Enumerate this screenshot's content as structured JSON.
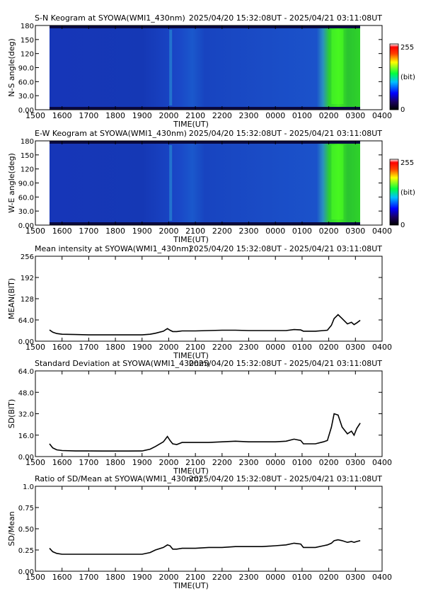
{
  "chart_data": [
    {
      "type": "heatmap",
      "title": "S-N Keogram at SYOWA(WMI1_430nm)",
      "time_range": "2025/04/20 15:32:08UT - 2025/04/21 03:11:08UT",
      "xlabel": "TIME(UT)",
      "ylabel": "N-S angle(deg)",
      "x_ticks": [
        "1500",
        "1600",
        "1700",
        "1800",
        "1900",
        "2000",
        "2100",
        "2200",
        "2300",
        "0000",
        "0100",
        "0200",
        "0300",
        "0400"
      ],
      "y_ticks": [
        "0.00",
        "30.0",
        "60.0",
        "90.0",
        "120",
        "150",
        "180"
      ],
      "ylim": [
        0,
        180
      ],
      "colorbar": {
        "max_label": "255",
        "unit_label": "(bit)",
        "min_label": "0"
      }
    },
    {
      "type": "heatmap",
      "title": "E-W Keogram at SYOWA(WMI1_430nm)",
      "time_range": "2025/04/20 15:32:08UT - 2025/04/21 03:11:08UT",
      "xlabel": "TIME(UT)",
      "ylabel": "W-E angle(deg)",
      "x_ticks": [
        "1500",
        "1600",
        "1700",
        "1800",
        "1900",
        "2000",
        "2100",
        "2200",
        "2300",
        "0000",
        "0100",
        "0200",
        "0300",
        "0400"
      ],
      "y_ticks": [
        "0.00",
        "30.0",
        "60.0",
        "90.0",
        "120",
        "150",
        "180"
      ],
      "ylim": [
        0,
        180
      ],
      "colorbar": {
        "max_label": "255",
        "unit_label": "(bit)",
        "min_label": "0"
      }
    },
    {
      "type": "line",
      "title": "Mean intensity at SYOWA(WMI1_430nm)",
      "time_range": "2025/04/20 15:32:08UT - 2025/04/21 03:11:08UT",
      "xlabel": "TIME(UT)",
      "ylabel": "MEAN(BIT)",
      "x_ticks": [
        "1500",
        "1600",
        "1700",
        "1800",
        "1900",
        "2000",
        "2100",
        "2200",
        "2300",
        "0000",
        "0100",
        "0200",
        "0300",
        "0400"
      ],
      "y_ticks": [
        "0.00",
        "64.0",
        "128",
        "192",
        "256"
      ],
      "ylim": [
        0,
        256
      ],
      "x_hours": [
        15.53,
        15.65,
        15.8,
        16.0,
        16.5,
        17.0,
        17.5,
        18.0,
        18.5,
        19.0,
        19.3,
        19.5,
        19.8,
        19.95,
        20.05,
        20.15,
        20.3,
        20.5,
        21.0,
        21.5,
        22.0,
        22.5,
        23.0,
        23.5,
        24.0,
        24.4,
        24.7,
        24.95,
        25.05,
        25.5,
        25.8,
        25.95,
        26.1,
        26.2,
        26.35,
        26.5,
        26.7,
        26.85,
        26.95,
        27.05,
        27.18
      ],
      "values": [
        34,
        27,
        23,
        21,
        20,
        19,
        19,
        19,
        19,
        19,
        21,
        24,
        30,
        38,
        33,
        29,
        29,
        31,
        31,
        32,
        33,
        33,
        32,
        32,
        32,
        32,
        35,
        34,
        30,
        30,
        32,
        33,
        48,
        68,
        80,
        68,
        52,
        57,
        50,
        55,
        63
      ]
    },
    {
      "type": "line",
      "title": "Standard Deviation at SYOWA(WMI1_430nm)",
      "time_range": "2025/04/20 15:32:08UT - 2025/04/21 03:11:08UT",
      "xlabel": "TIME(UT)",
      "ylabel": "SD(BIT)",
      "x_ticks": [
        "1500",
        "1600",
        "1700",
        "1800",
        "1900",
        "2000",
        "2100",
        "2200",
        "2300",
        "0000",
        "0100",
        "0200",
        "0300",
        "0400"
      ],
      "y_ticks": [
        "0.00",
        "16.0",
        "32.0",
        "48.0",
        "64.0"
      ],
      "ylim": [
        0,
        64
      ],
      "x_hours": [
        15.53,
        15.65,
        15.8,
        16.0,
        16.5,
        17.0,
        17.5,
        18.0,
        18.5,
        19.0,
        19.3,
        19.5,
        19.8,
        19.95,
        20.05,
        20.15,
        20.3,
        20.5,
        21.0,
        21.5,
        22.0,
        22.5,
        23.0,
        23.5,
        24.0,
        24.4,
        24.7,
        24.95,
        25.05,
        25.5,
        25.8,
        25.95,
        26.1,
        26.2,
        26.35,
        26.5,
        26.7,
        26.85,
        26.95,
        27.05,
        27.18
      ],
      "values": [
        9.5,
        6.5,
        5.0,
        4.5,
        4.2,
        4.2,
        4.1,
        4.1,
        4.1,
        4.2,
        5.5,
        7.5,
        11,
        15,
        12,
        9.5,
        9.0,
        10.5,
        10.5,
        10.5,
        11,
        11.5,
        11,
        11,
        11,
        11.5,
        13,
        12,
        9.5,
        9.5,
        11,
        12,
        22,
        32,
        31,
        22,
        17,
        19,
        16,
        21,
        25
      ]
    },
    {
      "type": "line",
      "title": "Ratio of SD/Mean at SYOWA(WMI1_430nm)",
      "time_range": "2025/04/20 15:32:08UT - 2025/04/21 03:11:08UT",
      "xlabel": "TIME(UT)",
      "ylabel": "SD/Mean",
      "x_ticks": [
        "1500",
        "1600",
        "1700",
        "1800",
        "1900",
        "2000",
        "2100",
        "2200",
        "2300",
        "0000",
        "0100",
        "0200",
        "0300",
        "0400"
      ],
      "y_ticks": [
        "0.00",
        "0.25",
        "0.50",
        "0.75",
        "1.0"
      ],
      "ylim": [
        0,
        1.0
      ],
      "x_hours": [
        15.53,
        15.65,
        15.8,
        16.0,
        16.5,
        17.0,
        17.5,
        18.0,
        18.5,
        19.0,
        19.3,
        19.5,
        19.8,
        19.95,
        20.05,
        20.15,
        20.3,
        20.5,
        21.0,
        21.5,
        22.0,
        22.5,
        23.0,
        23.5,
        24.0,
        24.4,
        24.7,
        24.95,
        25.05,
        25.5,
        25.8,
        25.95,
        26.1,
        26.2,
        26.35,
        26.5,
        26.7,
        26.85,
        26.95,
        27.05,
        27.18
      ],
      "values": [
        0.27,
        0.23,
        0.21,
        0.2,
        0.2,
        0.2,
        0.2,
        0.2,
        0.2,
        0.2,
        0.22,
        0.25,
        0.28,
        0.31,
        0.3,
        0.26,
        0.26,
        0.27,
        0.27,
        0.28,
        0.28,
        0.29,
        0.29,
        0.29,
        0.3,
        0.31,
        0.33,
        0.32,
        0.28,
        0.28,
        0.3,
        0.31,
        0.33,
        0.36,
        0.37,
        0.36,
        0.34,
        0.35,
        0.34,
        0.35,
        0.36
      ]
    }
  ]
}
